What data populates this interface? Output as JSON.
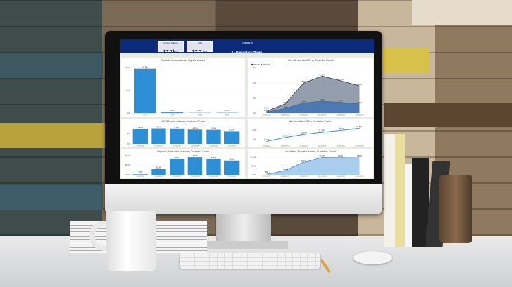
{
  "dashboard": {
    "kpis": [
      {
        "label": "Current Balance",
        "value": "$7.2bn"
      },
      {
        "label": "EAD",
        "value": "$7.7bn"
      }
    ],
    "scenario": {
      "label": "Scenario",
      "value": "1 - Regulatory Stress"
    }
  },
  "colors": {
    "header": "#0b2a7a",
    "bar": "#2e8fd6",
    "dark_area": "#2c3e5c",
    "light_area": "#a9cdec"
  },
  "chart_data": [
    {
      "type": "bar",
      "title": "Portfolio Composition by Days In Arrears",
      "categories": [
        "0-30",
        "90+",
        "30-60",
        "60-90"
      ],
      "values": [
        97.5,
        1.44,
        0.47,
        0.57
      ],
      "labels": [
        "97.5%",
        "1.44%",
        "0.47%",
        "0.57%"
      ],
      "yticks": [
        "0%",
        "50%",
        "100%"
      ],
      "ylim": [
        0,
        100
      ]
    },
    {
      "type": "area",
      "title": "WA LGD and WA LGF by Prediction Period",
      "categories": [
        "31/05/2021",
        "31/05/2022",
        "31/05/2023",
        "31/05/2024",
        "31/05/2025",
        "31/05/2026"
      ],
      "series": [
        {
          "name": "WA LGF",
          "values": [
            0.6,
            3.0,
            10.0,
            12.2,
            10.7,
            9.1
          ]
        },
        {
          "name": "WA LGD",
          "values": [
            0.3,
            1.5,
            3.3,
            3.9,
            3.5,
            3.0
          ]
        }
      ],
      "yticks": [
        "0%",
        "5%",
        "10%",
        "15%"
      ],
      "ylim": [
        0,
        15
      ],
      "legend": "top-left"
    },
    {
      "type": "bar",
      "title": "WA PD point in time by Prediction Period",
      "categories": [
        "31/05/2021",
        "31/05/2022",
        "31/05/2023",
        "31/05/2024",
        "31/05/2025",
        "31/05/2026"
      ],
      "values": [
        7.3,
        7.5,
        7.4,
        6.9,
        6.8,
        6.2
      ],
      "labels": [
        "7.30%",
        "7.50%",
        "7.40%",
        "6.90%",
        "6.80%",
        "6.20%"
      ],
      "yticks": [
        "0%",
        "5%"
      ],
      "ylim": [
        0,
        9
      ]
    },
    {
      "type": "line",
      "title": "WA Cumulative PD by Prediction Period",
      "categories": [
        "31/05/2021",
        "31/05/2022",
        "31/05/2023",
        "31/05/2024",
        "31/05/2025",
        "31/05/2026"
      ],
      "values": [
        7.6,
        11.8,
        15.2,
        17.5,
        19.5,
        21.8
      ],
      "labels": [
        "7.60%",
        "11.80%",
        "15.20%",
        "17.50%",
        "19.50%",
        "21.80%"
      ],
      "yticks": [
        "10%",
        "20%"
      ],
      "ylim": [
        5,
        25
      ]
    },
    {
      "type": "bar",
      "title": "Expected Loss point in time by Prediction Period",
      "categories": [
        "31/05/2021",
        "31/05/2022",
        "31/05/2023",
        "31/05/2024",
        "31/05/2025",
        "31/05/2026"
      ],
      "values": [
        1,
        12,
        33,
        37,
        33,
        29
      ],
      "labels": [
        "$1M",
        "$12M",
        "$33M",
        "$37M",
        "$33M",
        "$29M"
      ],
      "yticks": [
        "$0M",
        "$20M",
        "$40M"
      ],
      "ylim": [
        0,
        40
      ]
    },
    {
      "type": "area",
      "title": "Cumulative Expected Loss by Prediction Period",
      "categories": [
        "31/05/2021",
        "31/05/2022",
        "31/05/2023",
        "31/05/2024",
        "31/05/2025",
        "31/05/2026"
      ],
      "values": [
        3,
        24,
        71,
        100,
        99,
        98
      ],
      "labels": [
        "$3M",
        "$24M",
        "$71M",
        "$100M",
        "$99M",
        "$98M"
      ],
      "yticks": [
        "$0M",
        "$50M",
        "$100M"
      ],
      "ylim": [
        0,
        110
      ]
    }
  ]
}
